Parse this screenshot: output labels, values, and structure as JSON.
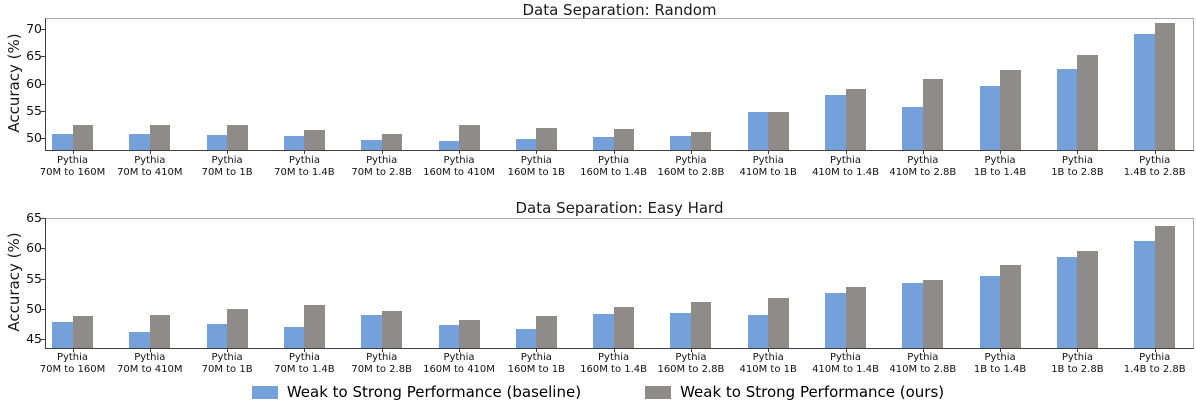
{
  "colors": {
    "baseline": "#74a1d9",
    "ours": "#8f8b89"
  },
  "legend": {
    "position": "below-center",
    "items": [
      {
        "label": "Weak to Strong Performance (baseline)",
        "color_key": "baseline"
      },
      {
        "label": "Weak to Strong Performance (ours)",
        "color_key": "ours"
      }
    ]
  },
  "chart_data": [
    {
      "type": "bar",
      "title": "Data Separation: Random",
      "xlabel": "",
      "ylabel": "Accuracy (%)",
      "yticks": [
        50,
        55,
        60,
        65,
        70
      ],
      "ylim": [
        47.9,
        72.0
      ],
      "grid": false,
      "category_line1": "Pythia",
      "categories": [
        "70M to 160M",
        "70M to 410M",
        "70M to 1B",
        "70M to 1.4B",
        "70M to 2.8B",
        "160M to 410M",
        "160M to 1B",
        "160M to 1.4B",
        "160M to 2.8B",
        "410M to 1B",
        "410M to 1.4B",
        "410M to 2.8B",
        "1B to 1.4B",
        "1B to 2.8B",
        "1.4B to 2.8B"
      ],
      "series": [
        {
          "name": "Weak to Strong Performance (baseline)",
          "color_key": "baseline",
          "values": [
            50.8,
            50.8,
            50.6,
            50.4,
            49.8,
            49.6,
            49.9,
            50.3,
            50.4,
            54.9,
            57.9,
            55.7,
            59.5,
            62.6,
            69.1
          ]
        },
        {
          "name": "Weak to Strong Performance (ours)",
          "color_key": "ours",
          "values": [
            52.5,
            52.5,
            52.5,
            51.5,
            50.8,
            52.4,
            51.9,
            51.7,
            51.1,
            54.9,
            59.0,
            60.9,
            62.5,
            65.2,
            71.1
          ]
        }
      ]
    },
    {
      "type": "bar",
      "title": "Data Separation: Easy Hard",
      "xlabel": "",
      "ylabel": "Accuracy (%)",
      "yticks": [
        45,
        50,
        55,
        60,
        65
      ],
      "ylim": [
        43.6,
        65.0
      ],
      "grid": false,
      "category_line1": "Pythia",
      "categories": [
        "70M to 160M",
        "70M to 410M",
        "70M to 1B",
        "70M to 1.4B",
        "70M to 2.8B",
        "160M to 410M",
        "160M to 1B",
        "160M to 1.4B",
        "160M to 2.8B",
        "410M to 1B",
        "410M to 1.4B",
        "410M to 2.8B",
        "1B to 1.4B",
        "1B to 2.8B",
        "1.4B to 2.8B"
      ],
      "series": [
        {
          "name": "Weak to Strong Performance (baseline)",
          "color_key": "baseline",
          "values": [
            47.9,
            46.3,
            47.5,
            47.1,
            49.0,
            47.4,
            46.7,
            49.2,
            49.4,
            49.1,
            52.6,
            54.3,
            55.4,
            58.6,
            61.2
          ]
        },
        {
          "name": "Weak to Strong Performance (ours)",
          "color_key": "ours",
          "values": [
            48.8,
            49.0,
            50.1,
            50.7,
            49.7,
            48.2,
            48.8,
            50.3,
            51.2,
            51.8,
            53.6,
            54.8,
            57.3,
            59.5,
            63.7
          ]
        }
      ]
    }
  ]
}
